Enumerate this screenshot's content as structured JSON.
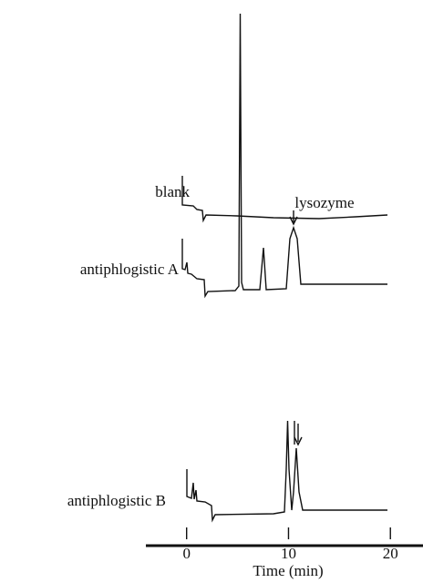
{
  "chart_data": {
    "type": "chromatogram",
    "xlabel": "Time (min)",
    "xlim": [
      -4,
      23.2
    ],
    "xticks": [
      0,
      10,
      20
    ],
    "traces": [
      "blank",
      "antiphlogistic A",
      "antiphlogistic B"
    ],
    "annotation": "lysozyme"
  }
}
